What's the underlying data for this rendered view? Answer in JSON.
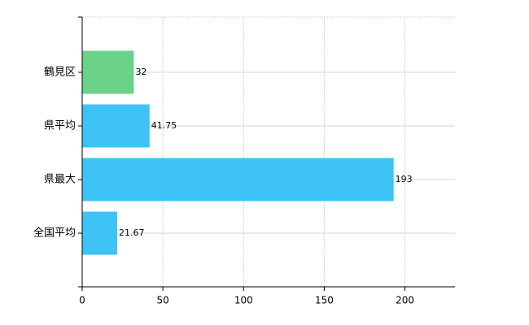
{
  "chart_data": {
    "type": "bar",
    "orientation": "horizontal",
    "categories": [
      "鶴見区",
      "県平均",
      "県最大",
      "全国平均"
    ],
    "values": [
      32,
      41.75,
      193,
      21.67
    ],
    "colors": [
      "#6bd28a",
      "#3dc3f5",
      "#3dc3f5",
      "#3dc3f5"
    ],
    "xlim": [
      0,
      231
    ],
    "xticks": [
      0,
      50,
      100,
      150,
      200
    ],
    "grid": true
  }
}
